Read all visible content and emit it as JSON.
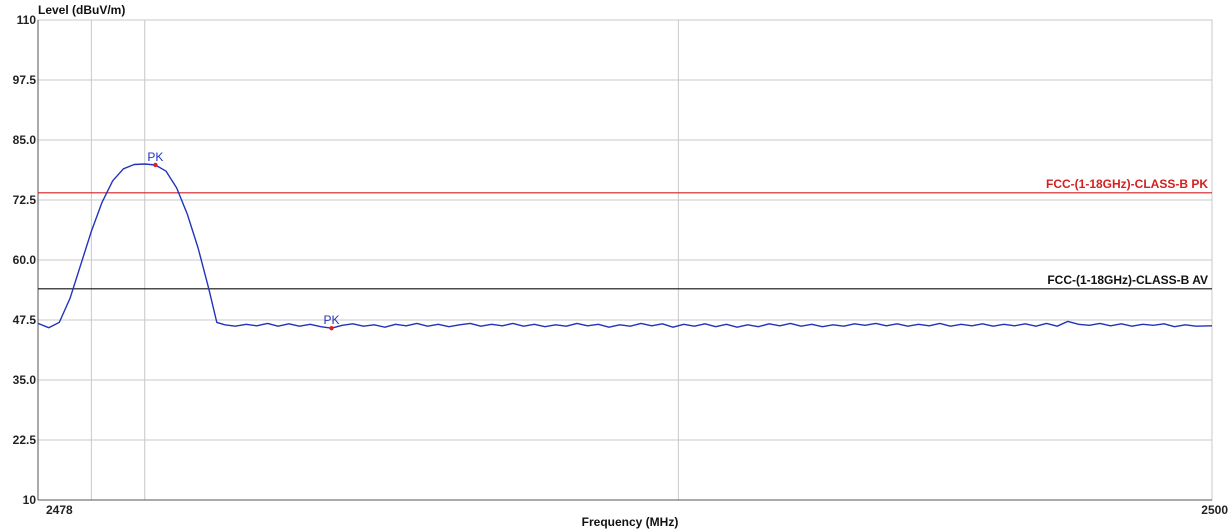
{
  "chart_data": {
    "type": "line",
    "title": "",
    "ylabel": "Level (dBuV/m)",
    "xlabel": "Frequency (MHz)",
    "xlim": [
      2478,
      2500
    ],
    "ylim": [
      10,
      110
    ],
    "x_tick_labels": [
      "2478",
      "2500"
    ],
    "y_tick_labels": [
      "110",
      "97.5",
      "85.0",
      "72.5",
      "60.0",
      "47.5",
      "35.0",
      "22.5",
      "10"
    ],
    "y_ticks": [
      110,
      97.5,
      85.0,
      72.5,
      60.0,
      47.5,
      35.0,
      22.5,
      10
    ],
    "x_gridlines": [
      2478,
      2479,
      2480,
      2490,
      2500
    ],
    "grid": true,
    "colors": {
      "trace": "#2233bb",
      "pk_limit": "#d42020",
      "av_limit": "#111111",
      "marker": "#e02020",
      "grid": "#c8c8c8"
    },
    "limit_lines": [
      {
        "label": "FCC-(1-18GHz)-CLASS-B PK",
        "value": 74.0,
        "color": "#d42020"
      },
      {
        "label": "FCC-(1-18GHz)-CLASS-B AV",
        "value": 54.0,
        "color": "#111111"
      }
    ],
    "markers": [
      {
        "label": "PK",
        "x": 2480.2,
        "y": 79.8
      },
      {
        "label": "PK",
        "x": 2483.5,
        "y": 45.8
      }
    ],
    "series": [
      {
        "values": [
          [
            2478.0,
            46.8
          ],
          [
            2478.2,
            45.9
          ],
          [
            2478.4,
            47.0
          ],
          [
            2478.6,
            52.0
          ],
          [
            2478.8,
            59.0
          ],
          [
            2479.0,
            66.0
          ],
          [
            2479.2,
            72.0
          ],
          [
            2479.4,
            76.5
          ],
          [
            2479.6,
            79.0
          ],
          [
            2479.8,
            79.9
          ],
          [
            2480.0,
            80.0
          ],
          [
            2480.2,
            79.8
          ],
          [
            2480.4,
            78.5
          ],
          [
            2480.6,
            75.0
          ],
          [
            2480.8,
            69.5
          ],
          [
            2481.0,
            62.5
          ],
          [
            2481.2,
            54.0
          ],
          [
            2481.35,
            47.0
          ],
          [
            2481.5,
            46.5
          ],
          [
            2481.7,
            46.2
          ],
          [
            2481.9,
            46.6
          ],
          [
            2482.1,
            46.3
          ],
          [
            2482.3,
            46.8
          ],
          [
            2482.5,
            46.2
          ],
          [
            2482.7,
            46.7
          ],
          [
            2482.9,
            46.2
          ],
          [
            2483.1,
            46.6
          ],
          [
            2483.3,
            46.1
          ],
          [
            2483.5,
            45.8
          ],
          [
            2483.7,
            46.4
          ],
          [
            2483.9,
            46.7
          ],
          [
            2484.1,
            46.2
          ],
          [
            2484.3,
            46.5
          ],
          [
            2484.5,
            46.0
          ],
          [
            2484.7,
            46.6
          ],
          [
            2484.9,
            46.3
          ],
          [
            2485.1,
            46.8
          ],
          [
            2485.3,
            46.2
          ],
          [
            2485.5,
            46.6
          ],
          [
            2485.7,
            46.1
          ],
          [
            2485.9,
            46.5
          ],
          [
            2486.1,
            46.8
          ],
          [
            2486.3,
            46.2
          ],
          [
            2486.5,
            46.6
          ],
          [
            2486.7,
            46.3
          ],
          [
            2486.9,
            46.8
          ],
          [
            2487.1,
            46.2
          ],
          [
            2487.3,
            46.6
          ],
          [
            2487.5,
            46.1
          ],
          [
            2487.7,
            46.5
          ],
          [
            2487.9,
            46.2
          ],
          [
            2488.1,
            46.8
          ],
          [
            2488.3,
            46.3
          ],
          [
            2488.5,
            46.6
          ],
          [
            2488.7,
            46.0
          ],
          [
            2488.9,
            46.5
          ],
          [
            2489.1,
            46.2
          ],
          [
            2489.3,
            46.8
          ],
          [
            2489.5,
            46.3
          ],
          [
            2489.7,
            46.7
          ],
          [
            2489.9,
            46.0
          ],
          [
            2490.1,
            46.6
          ],
          [
            2490.3,
            46.2
          ],
          [
            2490.5,
            46.7
          ],
          [
            2490.7,
            46.1
          ],
          [
            2490.9,
            46.6
          ],
          [
            2491.1,
            46.0
          ],
          [
            2491.3,
            46.5
          ],
          [
            2491.5,
            46.1
          ],
          [
            2491.7,
            46.7
          ],
          [
            2491.9,
            46.3
          ],
          [
            2492.1,
            46.8
          ],
          [
            2492.3,
            46.2
          ],
          [
            2492.5,
            46.6
          ],
          [
            2492.7,
            46.1
          ],
          [
            2492.9,
            46.5
          ],
          [
            2493.1,
            46.2
          ],
          [
            2493.3,
            46.7
          ],
          [
            2493.5,
            46.4
          ],
          [
            2493.7,
            46.8
          ],
          [
            2493.9,
            46.3
          ],
          [
            2494.1,
            46.7
          ],
          [
            2494.3,
            46.2
          ],
          [
            2494.5,
            46.6
          ],
          [
            2494.7,
            46.3
          ],
          [
            2494.9,
            46.8
          ],
          [
            2495.1,
            46.2
          ],
          [
            2495.3,
            46.6
          ],
          [
            2495.5,
            46.3
          ],
          [
            2495.7,
            46.7
          ],
          [
            2495.9,
            46.2
          ],
          [
            2496.1,
            46.6
          ],
          [
            2496.3,
            46.3
          ],
          [
            2496.5,
            46.7
          ],
          [
            2496.7,
            46.2
          ],
          [
            2496.9,
            46.8
          ],
          [
            2497.1,
            46.2
          ],
          [
            2497.3,
            47.2
          ],
          [
            2497.5,
            46.6
          ],
          [
            2497.7,
            46.4
          ],
          [
            2497.9,
            46.8
          ],
          [
            2498.1,
            46.3
          ],
          [
            2498.3,
            46.7
          ],
          [
            2498.5,
            46.2
          ],
          [
            2498.7,
            46.6
          ],
          [
            2498.9,
            46.4
          ],
          [
            2499.1,
            46.7
          ],
          [
            2499.3,
            46.1
          ],
          [
            2499.5,
            46.5
          ],
          [
            2499.7,
            46.2
          ],
          [
            2500.0,
            46.3
          ]
        ]
      }
    ]
  }
}
